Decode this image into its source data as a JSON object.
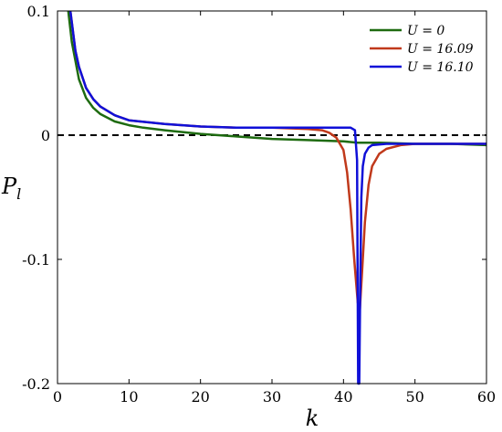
{
  "chart_data": {
    "type": "line",
    "xlabel": "k",
    "ylabel": "P",
    "ylabel_sub": "l",
    "xlim": [
      0,
      60
    ],
    "ylim": [
      -0.2,
      0.1
    ],
    "xticks": [
      0,
      10,
      20,
      30,
      40,
      50,
      60
    ],
    "yticks": [
      -0.2,
      -0.1,
      0,
      0.1
    ],
    "xtick_labels": [
      "0",
      "10",
      "20",
      "30",
      "40",
      "50",
      "60"
    ],
    "ytick_labels": [
      "-0.2",
      "-0.1",
      "0",
      "0.1"
    ],
    "grid": false,
    "legend_position": "top-right",
    "reference_line": {
      "y": 0,
      "style": "dashed",
      "color": "#000000"
    },
    "series": [
      {
        "name": "U = 0",
        "legend_label": "U = 0",
        "color": "#1e6b10",
        "x": [
          1.5,
          2,
          3,
          4,
          5,
          6,
          8,
          10,
          12,
          15,
          20,
          25,
          30,
          35,
          40,
          42,
          45,
          50,
          55,
          60
        ],
        "y": [
          0.1,
          0.075,
          0.045,
          0.03,
          0.022,
          0.017,
          0.011,
          0.008,
          0.006,
          0.004,
          0.001,
          -0.001,
          -0.003,
          -0.004,
          -0.005,
          -0.006,
          -0.006,
          -0.007,
          -0.007,
          -0.008
        ]
      },
      {
        "name": "U = 16.09",
        "legend_label": "U = 16.09",
        "color": "#c0391b",
        "x": [
          1.8,
          2.5,
          3,
          4,
          5,
          6,
          8,
          10,
          15,
          20,
          25,
          30,
          35,
          37,
          38,
          39,
          40,
          40.5,
          41,
          41.5,
          42,
          42.3,
          42.6,
          43,
          43.5,
          44,
          45,
          46,
          48,
          50,
          55,
          60
        ],
        "y": [
          0.1,
          0.068,
          0.055,
          0.038,
          0.029,
          0.023,
          0.016,
          0.012,
          0.009,
          0.007,
          0.006,
          0.006,
          0.005,
          0.004,
          0.002,
          -0.002,
          -0.012,
          -0.03,
          -0.06,
          -0.1,
          -0.135,
          -0.14,
          -0.11,
          -0.07,
          -0.04,
          -0.025,
          -0.015,
          -0.011,
          -0.008,
          -0.007,
          -0.007,
          -0.007
        ]
      },
      {
        "name": "U = 16.10",
        "legend_label": "U = 16.10",
        "color": "#1010d8",
        "x": [
          1.8,
          2.5,
          3,
          4,
          5,
          6,
          8,
          10,
          15,
          20,
          25,
          30,
          35,
          38,
          40,
          41,
          41.6,
          41.9,
          42.05,
          42.2,
          42.35,
          42.5,
          42.7,
          43,
          43.5,
          44,
          46,
          48,
          50,
          55,
          60
        ],
        "y": [
          0.1,
          0.068,
          0.055,
          0.038,
          0.029,
          0.023,
          0.016,
          0.012,
          0.009,
          0.007,
          0.006,
          0.006,
          0.006,
          0.006,
          0.006,
          0.006,
          0.004,
          -0.02,
          -0.2,
          -0.2,
          -0.12,
          -0.05,
          -0.025,
          -0.015,
          -0.01,
          -0.008,
          -0.007,
          -0.007,
          -0.007,
          -0.007,
          -0.007
        ]
      }
    ]
  }
}
